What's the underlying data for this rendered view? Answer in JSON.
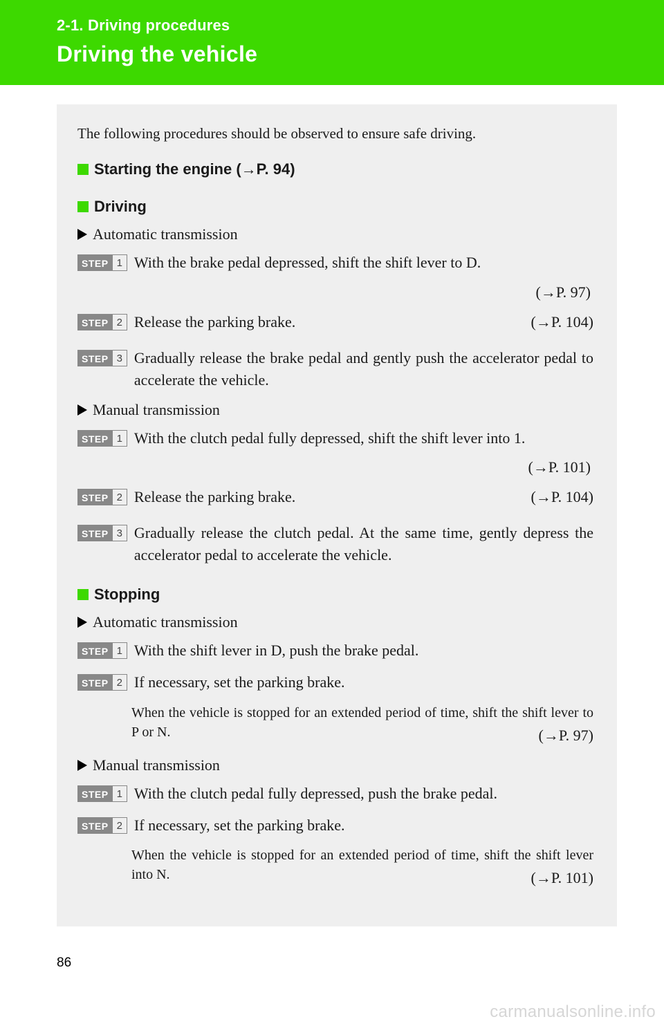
{
  "colors": {
    "brand_green": "#3dd900",
    "header_text": "#ffffff",
    "content_bg": "#efefef",
    "body_text": "#1a1a1a",
    "step_badge_bg": "#888888",
    "watermark": "#d6d6d6"
  },
  "header": {
    "section_label": "2-1.  Driving procedures",
    "title": "Driving the vehicle"
  },
  "intro": "The following procedures should be observed to ensure safe driving.",
  "sections": {
    "starting": {
      "heading": "Starting the engine (→P. 94)"
    },
    "driving": {
      "heading": "Driving",
      "auto": {
        "label": "Automatic transmission",
        "step1": {
          "num": "1",
          "text": "With the brake pedal depressed, shift the shift lever to D.",
          "pref": "(→P. 97)"
        },
        "step2": {
          "num": "2",
          "text": "Release the parking brake.",
          "pref": "(→P. 104)"
        },
        "step3": {
          "num": "3",
          "text": "Gradually release the brake pedal and gently push the accelerator pedal to accelerate the vehicle."
        }
      },
      "manual": {
        "label": "Manual transmission",
        "step1": {
          "num": "1",
          "text": "With the clutch pedal fully depressed, shift the shift lever into 1.",
          "pref": "(→P. 101)"
        },
        "step2": {
          "num": "2",
          "text": "Release the parking brake.",
          "pref": "(→P. 104)"
        },
        "step3": {
          "num": "3",
          "text": "Gradually release the clutch pedal. At the same time, gently depress the accelerator pedal to accelerate the vehicle."
        }
      }
    },
    "stopping": {
      "heading": "Stopping",
      "auto": {
        "label": "Automatic transmission",
        "step1": {
          "num": "1",
          "text": "With the shift lever in D, push the brake pedal."
        },
        "step2": {
          "num": "2",
          "text": "If necessary, set the parking brake.",
          "note": "When the vehicle is stopped for an extended period of time, shift the shift lever to P or N.",
          "pref": "(→P. 97)"
        }
      },
      "manual": {
        "label": "Manual transmission",
        "step1": {
          "num": "1",
          "text": "With the clutch pedal fully depressed, push the brake pedal."
        },
        "step2": {
          "num": "2",
          "text": "If necessary, set the parking brake.",
          "note": "When the vehicle is stopped for an extended period of time, shift the shift lever into N.",
          "pref": "(→P. 101)"
        }
      }
    }
  },
  "badge_word": "STEP",
  "page_number": "86",
  "watermark": "carmanualsonline.info"
}
